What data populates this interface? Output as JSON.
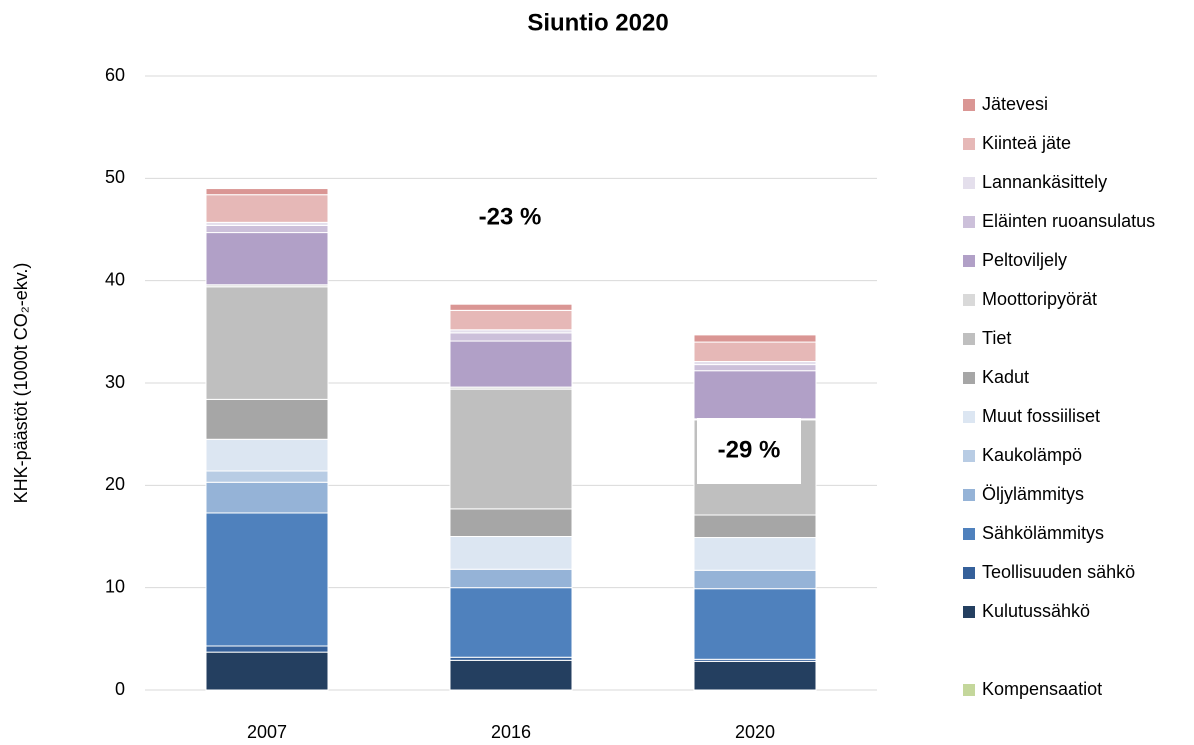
{
  "chart_data": {
    "type": "bar",
    "stacked": true,
    "title": "Siuntio 2020",
    "ylabel": "KHK-päästöt (1000t CO₂-ekv.)",
    "categories": [
      "2007",
      "2016",
      "2020"
    ],
    "ylim": [
      0,
      60
    ],
    "yticks": [
      0,
      10,
      20,
      30,
      40,
      50,
      60
    ],
    "grid": true,
    "legend": "right",
    "annotations": [
      "-23 %",
      "-29 %"
    ],
    "series": [
      {
        "name": "Kulutussähkö",
        "color": "#243f60",
        "values": [
          3.7,
          2.9,
          2.8
        ]
      },
      {
        "name": "Teollisuuden sähkö",
        "color": "#35609a",
        "values": [
          0.6,
          0.3,
          0.2
        ]
      },
      {
        "name": "Sähkölämmitys",
        "color": "#4f81bd",
        "values": [
          13.0,
          6.8,
          6.9
        ]
      },
      {
        "name": "Öljylämmitys",
        "color": "#95b3d7",
        "values": [
          3.0,
          1.8,
          1.8
        ]
      },
      {
        "name": "Kaukolämpö",
        "color": "#b8cce4",
        "values": [
          1.1,
          0,
          0
        ]
      },
      {
        "name": "Muut fossiiliset",
        "color": "#dce6f2",
        "values": [
          3.1,
          3.2,
          3.2
        ]
      },
      {
        "name": "Kadut",
        "color": "#a6a6a6",
        "values": [
          3.9,
          2.7,
          2.2
        ]
      },
      {
        "name": "Tiet",
        "color": "#bfbfbf",
        "values": [
          11.0,
          11.7,
          9.3
        ]
      },
      {
        "name": "Moottoripyörät",
        "color": "#d9d9d9",
        "values": [
          0.2,
          0.2,
          0.1
        ]
      },
      {
        "name": "Peltoviljely",
        "color": "#b1a0c7",
        "values": [
          5.1,
          4.5,
          4.7
        ]
      },
      {
        "name": "Eläinten ruoansulatus",
        "color": "#ccc0da",
        "values": [
          0.7,
          0.8,
          0.6
        ]
      },
      {
        "name": "Lannankäsittely",
        "color": "#e4dfec",
        "values": [
          0.3,
          0.3,
          0.3
        ]
      },
      {
        "name": "Kiinteä jäte",
        "color": "#e6b8b7",
        "values": [
          2.7,
          1.9,
          1.9
        ]
      },
      {
        "name": "Jätevesi",
        "color": "#da9694",
        "values": [
          0.6,
          0.6,
          0.7
        ]
      },
      {
        "name": "Kompensaatiot",
        "color": "#c4d79b",
        "values": [
          0,
          0,
          0
        ]
      }
    ]
  }
}
